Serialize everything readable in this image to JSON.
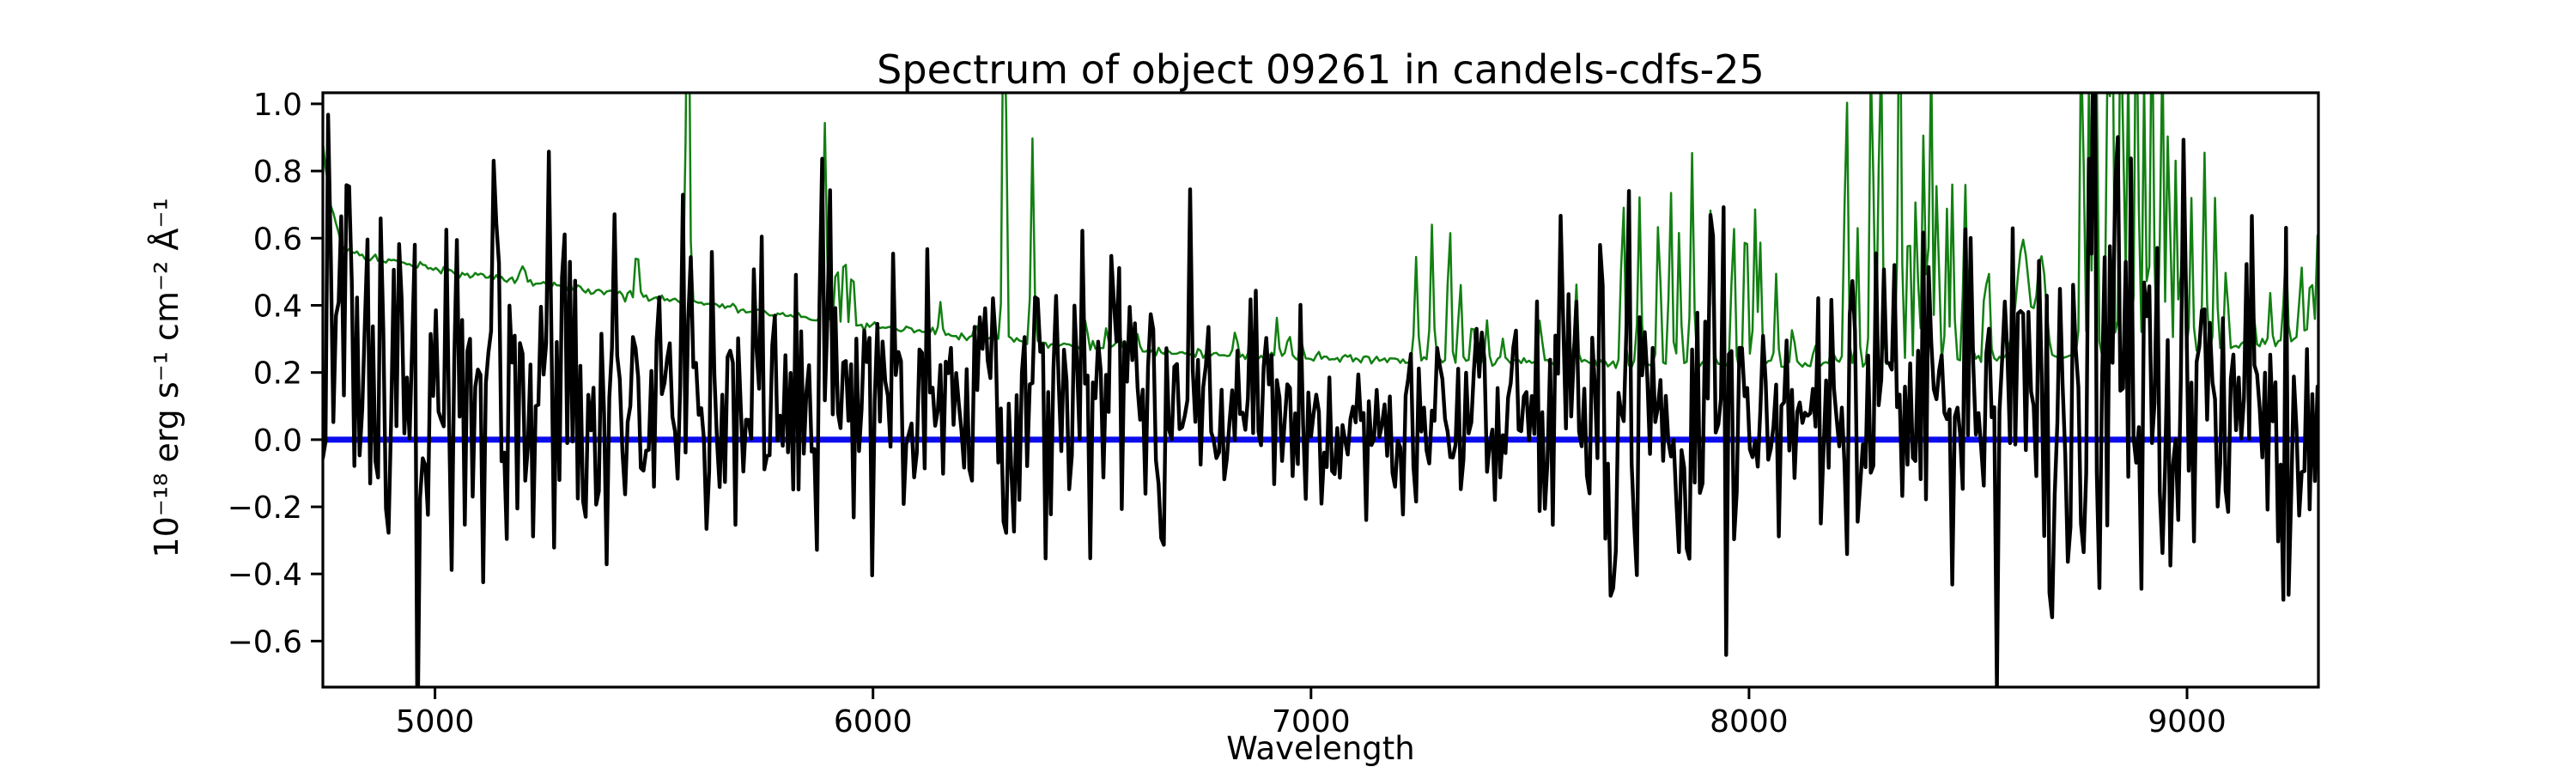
{
  "figure": {
    "background": "#ffffff"
  },
  "chart_data": {
    "type": "line",
    "title": "Spectrum of object 09261 in candels-cdfs-25",
    "xlabel": "Wavelength",
    "ylabel": "10⁻¹⁸ erg s⁻¹ cm⁻² Å⁻¹",
    "xlim": [
      4744,
      9300
    ],
    "ylim": [
      -0.737,
      1.033
    ],
    "xticks": [
      5000,
      6000,
      7000,
      8000,
      9000
    ],
    "yticks": [
      -0.6,
      -0.4,
      -0.2,
      0.0,
      0.2,
      0.4,
      0.6,
      0.8,
      1.0
    ],
    "grid": false,
    "legend_position": "none",
    "colors": {
      "flux": "#000000",
      "sky": "#128012",
      "zero_line": "#0b0bee",
      "spine": "#000000"
    },
    "line_widths": {
      "flux": 4.4,
      "sky": 2.5,
      "zero_line": 7,
      "spine": 3.2
    },
    "zero_line_y": 0.0,
    "sampling": {
      "start": 4744,
      "end": 9300,
      "step": 6,
      "seed": 1337
    },
    "flux_series": {
      "name": "object flux",
      "continuum_nodes": [
        [
          4744,
          0.2
        ],
        [
          5000,
          0.16
        ],
        [
          5400,
          0.14
        ],
        [
          5800,
          0.13
        ],
        [
          6200,
          0.12
        ],
        [
          6600,
          0.11
        ],
        [
          7000,
          0.07
        ],
        [
          7150,
          0.03
        ],
        [
          7300,
          0.06
        ],
        [
          7600,
          0.07
        ],
        [
          8000,
          0.07
        ],
        [
          8300,
          0.1
        ],
        [
          8600,
          0.11
        ],
        [
          9000,
          0.11
        ],
        [
          9300,
          0.12
        ]
      ],
      "noise_sigma_nodes": [
        [
          4744,
          0.3
        ],
        [
          5000,
          0.26
        ],
        [
          5400,
          0.23
        ],
        [
          5800,
          0.2
        ],
        [
          6200,
          0.17
        ],
        [
          6600,
          0.145
        ],
        [
          7000,
          0.12
        ],
        [
          7300,
          0.125
        ],
        [
          7600,
          0.17
        ],
        [
          7900,
          0.19
        ],
        [
          8200,
          0.15
        ],
        [
          8500,
          0.18
        ],
        [
          8800,
          0.26
        ],
        [
          9000,
          0.2
        ],
        [
          9300,
          0.19
        ]
      ],
      "sky_coupling": 0.22,
      "heavy_tail_prob": 0.05,
      "heavy_tail_factor": 1.8,
      "features": [
        [
          4756,
          0.65
        ],
        [
          4772,
          0.55
        ],
        [
          4800,
          0.5
        ],
        [
          4960,
          -0.72
        ],
        [
          5075,
          0.45
        ],
        [
          5345,
          -0.62
        ],
        [
          5565,
          0.5
        ],
        [
          5590,
          0.45
        ],
        [
          5870,
          -0.6
        ],
        [
          5885,
          0.45
        ],
        [
          6320,
          -0.6
        ],
        [
          6545,
          0.5
        ],
        [
          6560,
          0.45
        ],
        [
          6655,
          -0.5
        ],
        [
          6725,
          0.45
        ],
        [
          7290,
          0.45
        ],
        [
          7690,
          -0.72
        ],
        [
          7725,
          0.4
        ],
        [
          7860,
          -0.7
        ],
        [
          7950,
          -0.55
        ],
        [
          8230,
          0.5
        ],
        [
          8335,
          0.5
        ],
        [
          8690,
          -0.5
        ],
        [
          8790,
          0.6
        ],
        [
          8840,
          0.8
        ],
        [
          8872,
          0.9
        ],
        [
          8895,
          -0.75
        ],
        [
          8930,
          0.5
        ],
        [
          9150,
          0.42
        ],
        [
          9235,
          -0.4
        ]
      ]
    },
    "sky_series": {
      "name": "noise / sky spectrum",
      "baseline_nodes": [
        [
          4744,
          0.88
        ],
        [
          4762,
          0.7
        ],
        [
          4790,
          0.57
        ],
        [
          4850,
          0.54
        ],
        [
          4950,
          0.52
        ],
        [
          5050,
          0.5
        ],
        [
          5200,
          0.47
        ],
        [
          5350,
          0.445
        ],
        [
          5500,
          0.42
        ],
        [
          5650,
          0.4
        ],
        [
          5800,
          0.37
        ],
        [
          5950,
          0.345
        ],
        [
          6100,
          0.325
        ],
        [
          6250,
          0.3
        ],
        [
          6400,
          0.285
        ],
        [
          6550,
          0.27
        ],
        [
          6700,
          0.258
        ],
        [
          6900,
          0.248
        ],
        [
          7100,
          0.24
        ],
        [
          7400,
          0.232
        ],
        [
          7700,
          0.228
        ],
        [
          8000,
          0.225
        ],
        [
          8300,
          0.228
        ],
        [
          8550,
          0.238
        ],
        [
          8700,
          0.25
        ],
        [
          8900,
          0.258
        ],
        [
          9100,
          0.272
        ],
        [
          9250,
          0.3
        ],
        [
          9300,
          0.33
        ]
      ],
      "noise_sigma": 0.006,
      "emission_lines": [
        [
          5199,
          0.05,
          6
        ],
        [
          5461,
          0.18,
          3
        ],
        [
          5577,
          1.3,
          3.5
        ],
        [
          5890,
          0.58,
          4
        ],
        [
          5917,
          0.22,
          3
        ],
        [
          5935,
          0.28,
          3
        ],
        [
          5953,
          0.22,
          3
        ],
        [
          6154,
          0.1,
          3
        ],
        [
          6235,
          0.06,
          3
        ],
        [
          6300,
          1.3,
          3.5
        ],
        [
          6364,
          0.6,
          3.5
        ],
        [
          6485,
          0.07,
          4
        ],
        [
          6533,
          0.09,
          3
        ],
        [
          6562,
          0.07,
          3
        ],
        [
          6604,
          0.06,
          3
        ],
        [
          6827,
          0.07,
          4
        ],
        [
          6864,
          0.1,
          4
        ],
        [
          6923,
          0.12,
          3
        ],
        [
          6949,
          0.09,
          3
        ],
        [
          6978,
          0.07,
          3
        ],
        [
          7240,
          0.3,
          3.5
        ],
        [
          7276,
          0.4,
          3.5
        ],
        [
          7316,
          0.45,
          3.5
        ],
        [
          7340,
          0.28,
          3
        ],
        [
          7369,
          0.16,
          3
        ],
        [
          7402,
          0.12,
          3
        ],
        [
          7437,
          0.08,
          3
        ],
        [
          7524,
          0.16,
          3
        ],
        [
          7571,
          0.38,
          3
        ],
        [
          7605,
          0.25,
          3
        ],
        [
          7712,
          0.55,
          3.5
        ],
        [
          7750,
          0.5,
          3.5
        ],
        [
          7794,
          0.48,
          3.5
        ],
        [
          7821,
          0.52,
          3.5
        ],
        [
          7841,
          0.42,
          3
        ],
        [
          7870,
          0.64,
          3.5
        ],
        [
          7913,
          0.48,
          3.5
        ],
        [
          7964,
          0.47,
          3.5
        ],
        [
          7993,
          0.52,
          3.5
        ],
        [
          8014,
          0.46,
          3.5
        ],
        [
          8026,
          0.36,
          3
        ],
        [
          8062,
          0.26,
          3
        ],
        [
          8100,
          0.12,
          3
        ],
        [
          8150,
          0.07,
          3
        ],
        [
          8190,
          0.08,
          3
        ],
        [
          8222,
          0.9,
          3.5
        ],
        [
          8248,
          0.4,
          3
        ],
        [
          8280,
          1.05,
          3.5
        ],
        [
          8300,
          1.1,
          3.5
        ],
        [
          8344,
          1.3,
          3.5
        ],
        [
          8365,
          0.55,
          3
        ],
        [
          8382,
          0.6,
          3
        ],
        [
          8399,
          0.7,
          3.5
        ],
        [
          8415,
          0.95,
          3.5
        ],
        [
          8430,
          0.65,
          3
        ],
        [
          8452,
          0.45,
          3
        ],
        [
          8465,
          0.55,
          3
        ],
        [
          8493,
          0.55,
          3.5
        ],
        [
          8505,
          0.38,
          3
        ],
        [
          8539,
          0.3,
          3
        ],
        [
          8548,
          0.25,
          3
        ],
        [
          8625,
          0.34,
          14
        ],
        [
          8667,
          0.3,
          10
        ],
        [
          8760,
          1.1,
          3.5
        ],
        [
          8777,
          0.85,
          3
        ],
        [
          8791,
          1.2,
          3.5
        ],
        [
          8820,
          0.95,
          3.5
        ],
        [
          8829,
          1.1,
          3
        ],
        [
          8850,
          1.25,
          3.5
        ],
        [
          8865,
          0.9,
          3
        ],
        [
          8885,
          1.2,
          3.5
        ],
        [
          8903,
          0.85,
          3
        ],
        [
          8920,
          1.1,
          3.5
        ],
        [
          8943,
          0.95,
          3.5
        ],
        [
          8958,
          0.8,
          3
        ],
        [
          8975,
          0.6,
          3
        ],
        [
          8990,
          0.55,
          3
        ],
        [
          9010,
          0.45,
          3
        ],
        [
          9040,
          0.58,
          3.5
        ],
        [
          9065,
          0.48,
          3
        ],
        [
          9090,
          0.3,
          3
        ],
        [
          9150,
          0.18,
          3
        ],
        [
          9190,
          0.15,
          3
        ],
        [
          9225,
          0.3,
          3.5
        ],
        [
          9260,
          0.25,
          3
        ],
        [
          9283,
          0.22,
          3
        ],
        [
          9298,
          0.28,
          3
        ]
      ]
    }
  }
}
